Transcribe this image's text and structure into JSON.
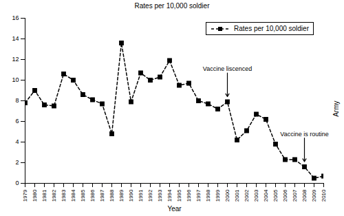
{
  "chart_data": {
    "type": "line",
    "title": "Rates per 10,000 soldier",
    "x_label": "Year",
    "y_label": "Army",
    "x": [
      1979,
      1980,
      1981,
      1982,
      1983,
      1984,
      1985,
      1986,
      1987,
      1988,
      1989,
      1990,
      1991,
      1992,
      1993,
      1994,
      1995,
      1996,
      1997,
      1998,
      1999,
      2000,
      2001,
      2002,
      2003,
      2004,
      2005,
      2006,
      2007,
      2008,
      2009,
      2010
    ],
    "series": [
      {
        "name": "Rates per 10,000 soldier",
        "color": "#000000",
        "marker": "square",
        "line_style": "dashed",
        "values": [
          7.8,
          9.0,
          7.6,
          7.5,
          10.6,
          10.0,
          8.6,
          8.1,
          7.7,
          4.8,
          13.6,
          7.9,
          10.7,
          10.0,
          10.3,
          11.9,
          9.5,
          9.7,
          8.0,
          7.7,
          7.2,
          7.9,
          4.2,
          5.1,
          6.7,
          6.2,
          3.8,
          2.3,
          2.3,
          1.6,
          0.5,
          0.7
        ]
      }
    ],
    "annotations": [
      {
        "text": "Vaccine liscenced",
        "x": 2000
      },
      {
        "text": "Vaccine is routine",
        "x": 2008
      }
    ],
    "xlim": [
      1979,
      2010
    ],
    "xticks": [
      1979,
      1980,
      1981,
      1982,
      1983,
      1984,
      1985,
      1986,
      1987,
      1988,
      1989,
      1990,
      1991,
      1992,
      1993,
      1994,
      1995,
      1996,
      1997,
      1998,
      1999,
      2000,
      2001,
      2002,
      2003,
      2004,
      2005,
      2006,
      2007,
      2008,
      2009,
      2010
    ],
    "ylim": [
      0,
      16
    ],
    "yticks": [
      0,
      2,
      4,
      6,
      8,
      10,
      12,
      14,
      16
    ],
    "grid": false,
    "legend": "top-right"
  }
}
